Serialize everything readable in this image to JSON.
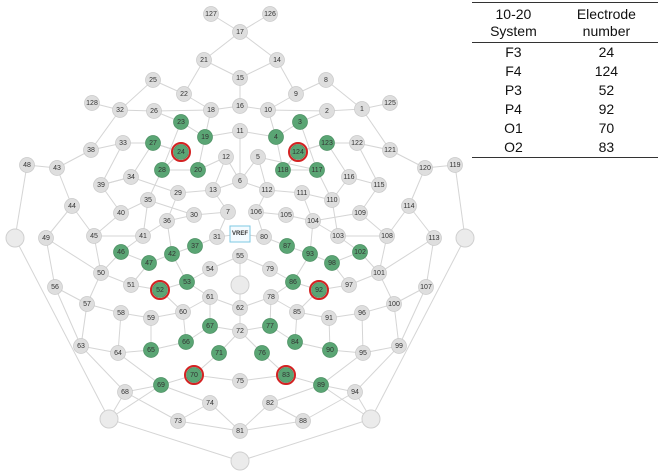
{
  "diagram": {
    "reference_label": "VREF",
    "green_electrodes": [
      "23",
      "19",
      "4",
      "3",
      "27",
      "24",
      "124",
      "123",
      "28",
      "20",
      "118",
      "117",
      "46",
      "47",
      "42",
      "37",
      "87",
      "93",
      "98",
      "102",
      "52",
      "53",
      "86",
      "92",
      "67",
      "77",
      "65",
      "66",
      "71",
      "76",
      "84",
      "90",
      "69",
      "70",
      "83",
      "89"
    ],
    "highlighted_electrodes": [
      "24",
      "124",
      "52",
      "92",
      "70",
      "83"
    ],
    "colors": {
      "gray_fill": "#dedede",
      "green_fill": "#5aa574",
      "highlight_ring": "#d32222",
      "edge": "#d5d5d5"
    }
  },
  "table": {
    "headers": [
      [
        "10-20",
        "System"
      ],
      [
        "Electrode",
        "number"
      ]
    ],
    "rows": [
      [
        "F3",
        "24"
      ],
      [
        "F4",
        "124"
      ],
      [
        "P3",
        "52"
      ],
      [
        "P4",
        "92"
      ],
      [
        "O1",
        "70"
      ],
      [
        "O2",
        "83"
      ]
    ]
  }
}
